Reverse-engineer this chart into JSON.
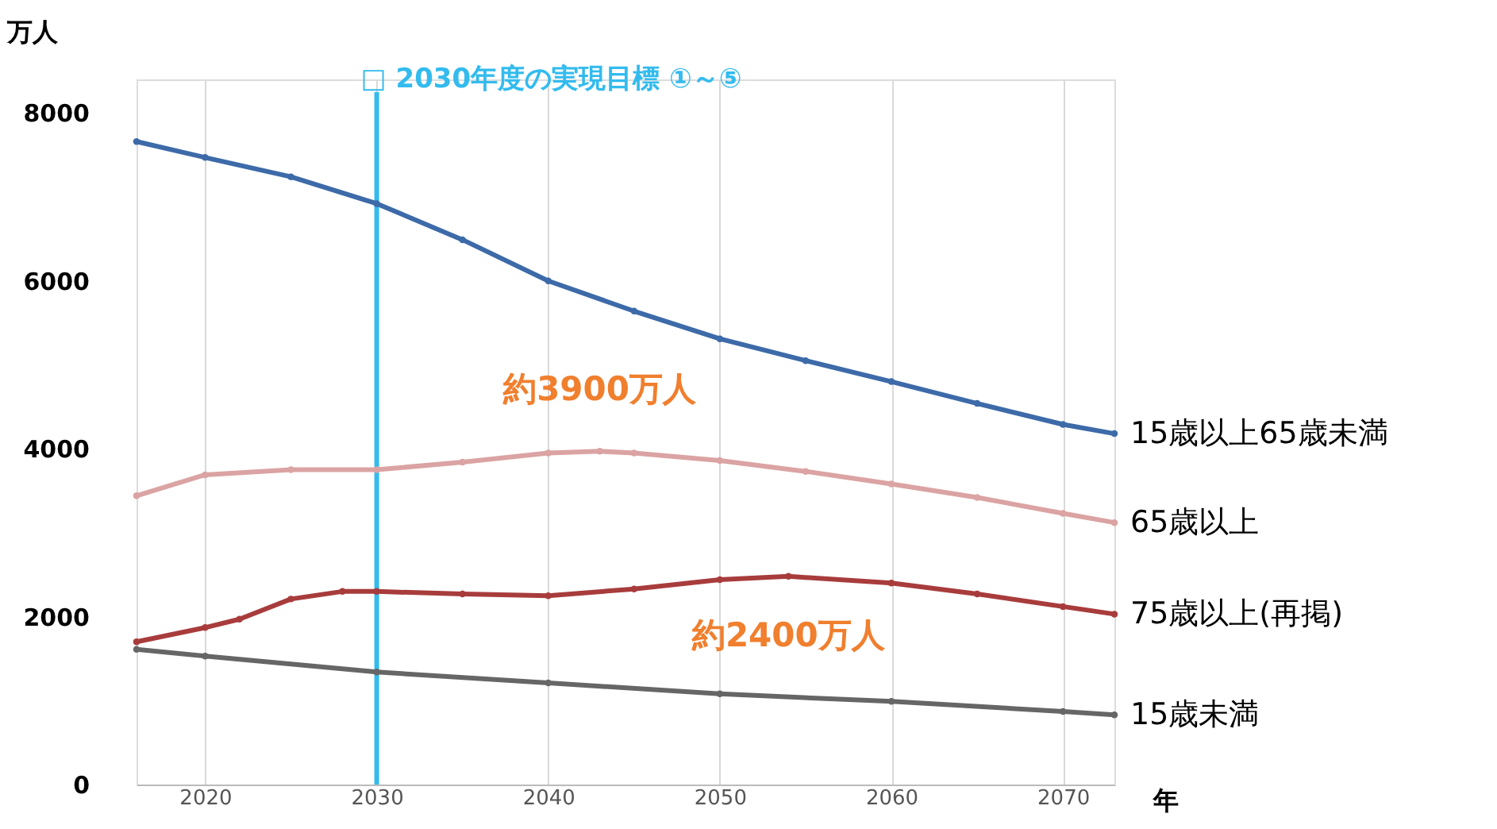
{
  "chart_data": {
    "type": "line",
    "xlabel": "年",
    "ylabel": "万人",
    "xlim": [
      2016,
      2073
    ],
    "xticks": [
      2020,
      2030,
      2040,
      2050,
      2060,
      2070
    ],
    "ylim": [
      0,
      8400
    ],
    "yticks": [
      0,
      2000,
      4000,
      6000,
      8000
    ],
    "grid": "x",
    "marker": "circle",
    "line_style": "solid",
    "series": [
      {
        "name": "15歳以上65歳未満",
        "color": "#3d6aa8",
        "x": [
          2016,
          2020,
          2025,
          2030,
          2035,
          2040,
          2045,
          2050,
          2055,
          2060,
          2065,
          2070,
          2073
        ],
        "values": [
          7660,
          7470,
          7240,
          6920,
          6490,
          6000,
          5640,
          5310,
          5050,
          4800,
          4540,
          4290,
          4180
        ]
      },
      {
        "name": "65歳以上",
        "color": "#dba3a3",
        "x": [
          2016,
          2020,
          2025,
          2030,
          2035,
          2040,
          2043,
          2045,
          2050,
          2055,
          2060,
          2065,
          2070,
          2073
        ],
        "values": [
          3440,
          3690,
          3750,
          3750,
          3840,
          3950,
          3970,
          3950,
          3860,
          3730,
          3580,
          3420,
          3230,
          3120
        ]
      },
      {
        "name": "75歳以上(再掲)",
        "color": "#a83c3c",
        "x": [
          2016,
          2020,
          2022,
          2025,
          2028,
          2030,
          2035,
          2040,
          2045,
          2050,
          2054,
          2060,
          2065,
          2070,
          2073
        ],
        "values": [
          1700,
          1870,
          1970,
          2210,
          2300,
          2300,
          2270,
          2250,
          2330,
          2440,
          2480,
          2400,
          2270,
          2120,
          2030
        ]
      },
      {
        "name": "15歳未満",
        "color": "#666666",
        "x": [
          2016,
          2020,
          2030,
          2040,
          2050,
          2060,
          2070,
          2073
        ],
        "values": [
          1610,
          1530,
          1340,
          1210,
          1080,
          990,
          870,
          830
        ]
      }
    ],
    "ref_lines": [
      {
        "axis": "x",
        "value": 2030,
        "label": "□ 2030年度の実現目標 ①～⑤",
        "color": "#33bbee",
        "line_style": "solid"
      }
    ],
    "annotations": [
      {
        "text": "約3900万人",
        "x": 2043,
        "y": 3970
      },
      {
        "text": "約2400万人",
        "x": 2054,
        "y": 2480
      }
    ]
  }
}
